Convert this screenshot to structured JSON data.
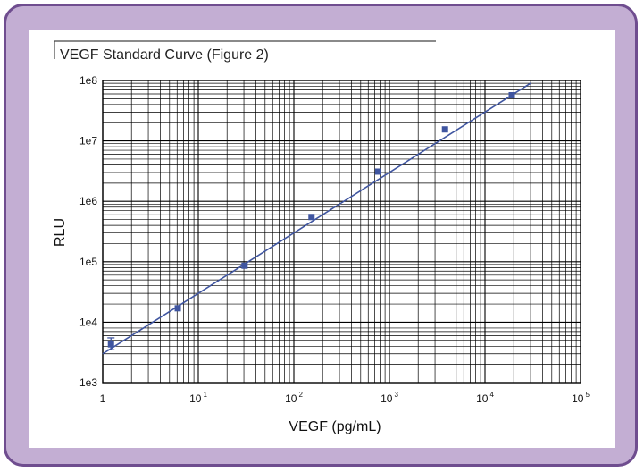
{
  "chart_data": {
    "type": "scatter",
    "title": "VEGF Standard Curve (Figure 2)",
    "xlabel": "VEGF (pg/mL)",
    "ylabel": "RLU",
    "x_scale": "log",
    "y_scale": "log",
    "xlim": [
      1,
      100000
    ],
    "ylim": [
      1000,
      100000000
    ],
    "grid": true,
    "x_ticks": [
      {
        "base": "1",
        "exp": ""
      },
      {
        "base": "10",
        "exp": "1"
      },
      {
        "base": "10",
        "exp": "2"
      },
      {
        "base": "10",
        "exp": "3"
      },
      {
        "base": "10",
        "exp": "4"
      },
      {
        "base": "10",
        "exp": "5"
      }
    ],
    "y_ticks": [
      "1e3",
      "1e4",
      "1e5",
      "1e6",
      "1e7",
      "1e8"
    ],
    "series": [
      {
        "points": [
          {
            "x": 1.22,
            "y": 4300,
            "err_low": 3500,
            "err_high": 5500
          },
          {
            "x": 6.1,
            "y": 17000
          },
          {
            "x": 30.5,
            "y": 86000
          },
          {
            "x": 153,
            "y": 550000
          },
          {
            "x": 763,
            "y": 3100000
          },
          {
            "x": 3815,
            "y": 15500000
          },
          {
            "x": 19075,
            "y": 57000000
          }
        ]
      }
    ],
    "fit_line": {
      "x": [
        1.0,
        30000
      ],
      "y": [
        3000,
        90000000
      ]
    },
    "colors": {
      "series": "#3f55a0",
      "grid": "#000000",
      "frame": "#c3aed3",
      "border": "#6f4d8f"
    }
  }
}
